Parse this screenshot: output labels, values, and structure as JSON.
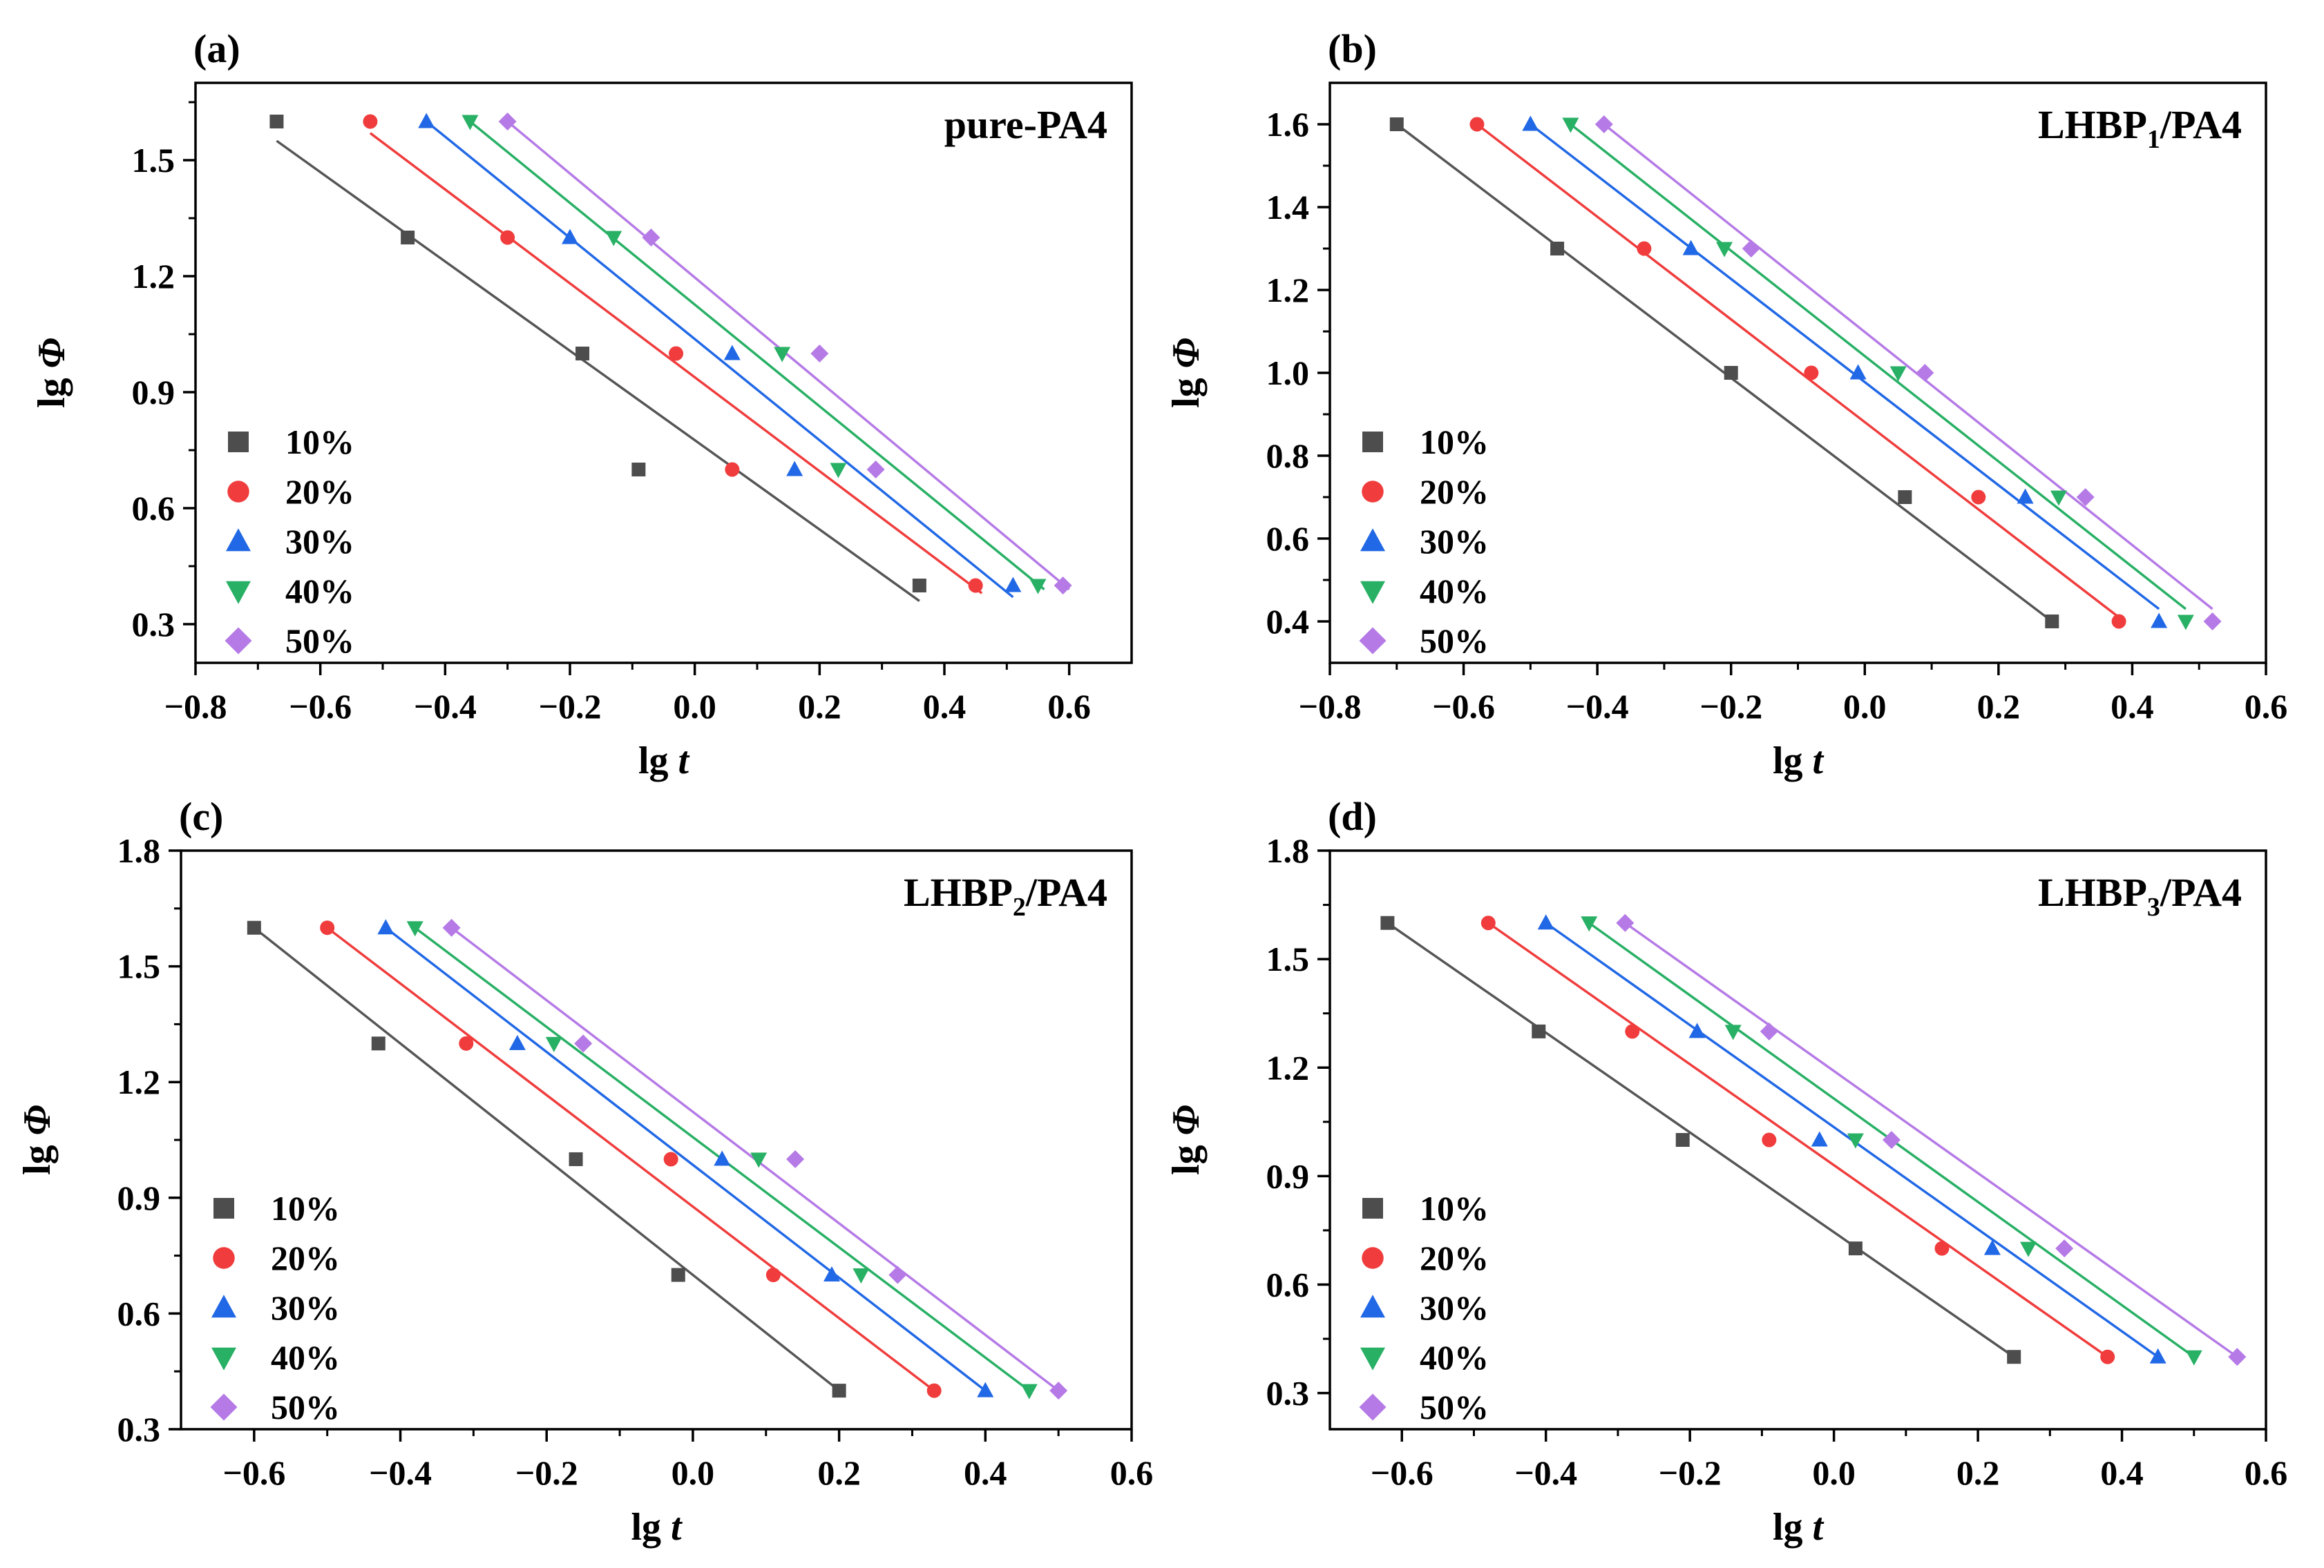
{
  "figure": {
    "series_style": [
      {
        "label": "10%",
        "color": "#4d4d4d",
        "line_color": "#555555",
        "marker": "square"
      },
      {
        "label": "20%",
        "color": "#f03c3c",
        "line_color": "#f03c3c",
        "marker": "circle"
      },
      {
        "label": "30%",
        "color": "#2168e6",
        "line_color": "#2168e6",
        "marker": "triangle-up"
      },
      {
        "label": "40%",
        "color": "#28b065",
        "line_color": "#28b065",
        "marker": "triangle-down"
      },
      {
        "label": "50%",
        "color": "#b57ae6",
        "line_color": "#b57ae6",
        "marker": "diamond"
      }
    ]
  },
  "chart_data": [
    {
      "type": "scatter",
      "panel_label": "(a)",
      "title": "pure-PA4",
      "title_sub": "",
      "title_suffix": "",
      "xlabel": "lg t",
      "ylabel": "lg Φ",
      "xlim": [
        -0.8,
        0.7
      ],
      "ylim": [
        0.2,
        1.7
      ],
      "xticks": [
        "−0.8",
        "−0.6",
        "−0.4",
        "−0.2",
        "0.0",
        "0.2",
        "0.4",
        "0.6"
      ],
      "xtick_values": [
        -0.8,
        -0.6,
        -0.4,
        -0.2,
        0.0,
        0.2,
        0.4,
        0.6
      ],
      "yticks": [
        "0.3",
        "0.6",
        "0.9",
        "1.2",
        "1.5"
      ],
      "ytick_values": [
        0.3,
        0.6,
        0.9,
        1.2,
        1.5
      ],
      "legend_position": "bottom-left",
      "series": [
        {
          "name": "10%",
          "x": [
            -0.67,
            -0.46,
            -0.18,
            -0.09,
            0.36
          ],
          "y": [
            1.6,
            1.3,
            1.0,
            0.7,
            0.4
          ],
          "fit": [
            [
              -0.67,
              1.55
            ],
            [
              0.36,
              0.36
            ]
          ]
        },
        {
          "name": "20%",
          "x": [
            -0.52,
            -0.3,
            -0.03,
            0.06,
            0.45
          ],
          "y": [
            1.6,
            1.3,
            1.0,
            0.7,
            0.4
          ],
          "fit": [
            [
              -0.52,
              1.57
            ],
            [
              0.46,
              0.38
            ]
          ]
        },
        {
          "name": "30%",
          "x": [
            -0.43,
            -0.2,
            0.06,
            0.16,
            0.51
          ],
          "y": [
            1.6,
            1.3,
            1.0,
            0.7,
            0.4
          ],
          "fit": [
            [
              -0.43,
              1.6
            ],
            [
              0.51,
              0.37
            ]
          ]
        },
        {
          "name": "40%",
          "x": [
            -0.36,
            -0.13,
            0.14,
            0.23,
            0.55
          ],
          "y": [
            1.6,
            1.3,
            1.0,
            0.7,
            0.4
          ],
          "fit": [
            [
              -0.36,
              1.6
            ],
            [
              0.56,
              0.39
            ]
          ]
        },
        {
          "name": "50%",
          "x": [
            -0.3,
            -0.07,
            0.2,
            0.29,
            0.59
          ],
          "y": [
            1.6,
            1.3,
            1.0,
            0.7,
            0.4
          ],
          "fit": [
            [
              -0.3,
              1.6
            ],
            [
              0.6,
              0.39
            ]
          ]
        }
      ]
    },
    {
      "type": "scatter",
      "panel_label": "(b)",
      "title": "LHBP",
      "title_sub": "1",
      "title_suffix": "/PA4",
      "xlabel": "lg t",
      "ylabel": "lg Φ",
      "xlim": [
        -0.8,
        0.6
      ],
      "ylim": [
        0.3,
        1.7
      ],
      "xticks": [
        "−0.8",
        "−0.6",
        "−0.4",
        "−0.2",
        "0.0",
        "0.2",
        "0.4",
        "0.6"
      ],
      "xtick_values": [
        -0.8,
        -0.6,
        -0.4,
        -0.2,
        0.0,
        0.2,
        0.4,
        0.6
      ],
      "yticks": [
        "0.4",
        "0.6",
        "0.8",
        "1.0",
        "1.2",
        "1.4",
        "1.6"
      ],
      "ytick_values": [
        0.4,
        0.6,
        0.8,
        1.0,
        1.2,
        1.4,
        1.6
      ],
      "legend_position": "bottom-left",
      "series": [
        {
          "name": "10%",
          "x": [
            -0.7,
            -0.46,
            -0.2,
            0.06,
            0.28
          ],
          "y": [
            1.6,
            1.3,
            1.0,
            0.7,
            0.4
          ],
          "fit": [
            [
              -0.7,
              1.6
            ],
            [
              0.28,
              0.4
            ]
          ]
        },
        {
          "name": "20%",
          "x": [
            -0.58,
            -0.33,
            -0.08,
            0.17,
            0.38
          ],
          "y": [
            1.6,
            1.3,
            1.0,
            0.7,
            0.4
          ],
          "fit": [
            [
              -0.58,
              1.6
            ],
            [
              0.38,
              0.41
            ]
          ]
        },
        {
          "name": "30%",
          "x": [
            -0.5,
            -0.26,
            -0.01,
            0.24,
            0.44
          ],
          "y": [
            1.6,
            1.3,
            1.0,
            0.7,
            0.4
          ],
          "fit": [
            [
              -0.5,
              1.6
            ],
            [
              0.44,
              0.43
            ]
          ]
        },
        {
          "name": "40%",
          "x": [
            -0.44,
            -0.21,
            0.05,
            0.29,
            0.48
          ],
          "y": [
            1.6,
            1.3,
            1.0,
            0.7,
            0.4
          ],
          "fit": [
            [
              -0.44,
              1.6
            ],
            [
              0.48,
              0.43
            ]
          ]
        },
        {
          "name": "50%",
          "x": [
            -0.39,
            -0.17,
            0.09,
            0.33,
            0.52
          ],
          "y": [
            1.6,
            1.3,
            1.0,
            0.7,
            0.4
          ],
          "fit": [
            [
              -0.39,
              1.6
            ],
            [
              0.52,
              0.43
            ]
          ]
        }
      ]
    },
    {
      "type": "scatter",
      "panel_label": "(c)",
      "title": "LHBP",
      "title_sub": "2",
      "title_suffix": "/PA4",
      "xlabel": "lg t",
      "ylabel": "lg Φ",
      "xlim": [
        -0.7,
        0.6
      ],
      "ylim": [
        0.3,
        1.8
      ],
      "xticks": [
        "−0.6",
        "−0.4",
        "−0.2",
        "0.0",
        "0.2",
        "0.4",
        "0.6"
      ],
      "xtick_values": [
        -0.6,
        -0.4,
        -0.2,
        0.0,
        0.2,
        0.4,
        0.6
      ],
      "yticks": [
        "0.3",
        "0.6",
        "0.9",
        "1.2",
        "1.5",
        "1.8"
      ],
      "ytick_values": [
        0.3,
        0.6,
        0.9,
        1.2,
        1.5,
        1.8
      ],
      "legend_position": "bottom-left",
      "series": [
        {
          "name": "10%",
          "x": [
            -0.6,
            -0.43,
            -0.16,
            -0.02,
            0.2
          ],
          "y": [
            1.6,
            1.3,
            1.0,
            0.7,
            0.4
          ],
          "fit": [
            [
              -0.6,
              1.6
            ],
            [
              0.2,
              0.4
            ]
          ]
        },
        {
          "name": "20%",
          "x": [
            -0.5,
            -0.31,
            -0.03,
            0.11,
            0.33
          ],
          "y": [
            1.6,
            1.3,
            1.0,
            0.7,
            0.4
          ],
          "fit": [
            [
              -0.5,
              1.6
            ],
            [
              0.33,
              0.4
            ]
          ]
        },
        {
          "name": "30%",
          "x": [
            -0.42,
            -0.24,
            0.04,
            0.19,
            0.4
          ],
          "y": [
            1.6,
            1.3,
            1.0,
            0.7,
            0.4
          ],
          "fit": [
            [
              -0.42,
              1.6
            ],
            [
              0.4,
              0.4
            ]
          ]
        },
        {
          "name": "40%",
          "x": [
            -0.38,
            -0.19,
            0.09,
            0.23,
            0.46
          ],
          "y": [
            1.6,
            1.3,
            1.0,
            0.7,
            0.4
          ],
          "fit": [
            [
              -0.38,
              1.6
            ],
            [
              0.46,
              0.4
            ]
          ]
        },
        {
          "name": "50%",
          "x": [
            -0.33,
            -0.15,
            0.14,
            0.28,
            0.5
          ],
          "y": [
            1.6,
            1.3,
            1.0,
            0.7,
            0.4
          ],
          "fit": [
            [
              -0.33,
              1.6
            ],
            [
              0.5,
              0.4
            ]
          ]
        }
      ]
    },
    {
      "type": "scatter",
      "panel_label": "(d)",
      "title": "LHBP",
      "title_sub": "3",
      "title_suffix": "/PA4",
      "xlabel": "lg t",
      "ylabel": "lg Φ",
      "xlim": [
        -0.7,
        0.6
      ],
      "ylim": [
        0.2,
        1.8
      ],
      "xticks": [
        "−0.6",
        "−0.4",
        "−0.2",
        "0.0",
        "0.2",
        "0.4",
        "0.6"
      ],
      "xtick_values": [
        -0.6,
        -0.4,
        -0.2,
        0.0,
        0.2,
        0.4,
        0.6
      ],
      "yticks": [
        "0.3",
        "0.6",
        "0.9",
        "1.2",
        "1.5",
        "1.8"
      ],
      "ytick_values": [
        0.3,
        0.6,
        0.9,
        1.2,
        1.5,
        1.8
      ],
      "legend_position": "bottom-left",
      "series": [
        {
          "name": "10%",
          "x": [
            -0.62,
            -0.41,
            -0.21,
            0.03,
            0.25
          ],
          "y": [
            1.6,
            1.3,
            1.0,
            0.7,
            0.4
          ],
          "fit": [
            [
              -0.62,
              1.6
            ],
            [
              0.25,
              0.4
            ]
          ]
        },
        {
          "name": "20%",
          "x": [
            -0.48,
            -0.28,
            -0.09,
            0.15,
            0.38
          ],
          "y": [
            1.6,
            1.3,
            1.0,
            0.7,
            0.4
          ],
          "fit": [
            [
              -0.48,
              1.6
            ],
            [
              0.38,
              0.4
            ]
          ]
        },
        {
          "name": "30%",
          "x": [
            -0.4,
            -0.19,
            -0.02,
            0.22,
            0.45
          ],
          "y": [
            1.6,
            1.3,
            1.0,
            0.7,
            0.4
          ],
          "fit": [
            [
              -0.4,
              1.6
            ],
            [
              0.45,
              0.4
            ]
          ]
        },
        {
          "name": "40%",
          "x": [
            -0.34,
            -0.14,
            0.03,
            0.27,
            0.5
          ],
          "y": [
            1.6,
            1.3,
            1.0,
            0.7,
            0.4
          ],
          "fit": [
            [
              -0.34,
              1.6
            ],
            [
              0.5,
              0.4
            ]
          ]
        },
        {
          "name": "50%",
          "x": [
            -0.29,
            -0.09,
            0.08,
            0.32,
            0.56
          ],
          "y": [
            1.6,
            1.3,
            1.0,
            0.7,
            0.4
          ],
          "fit": [
            [
              -0.29,
              1.6
            ],
            [
              0.56,
              0.4
            ]
          ]
        }
      ]
    }
  ]
}
